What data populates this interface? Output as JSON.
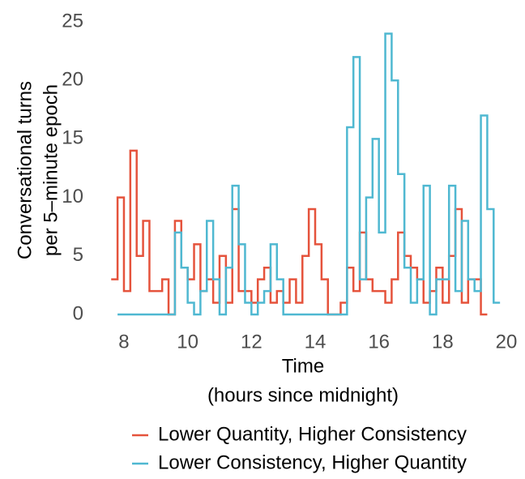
{
  "chart_data": {
    "type": "line",
    "step": true,
    "ylabel": [
      "Conversational turns",
      "per 5–minute epoch"
    ],
    "xlabel": [
      "Time",
      "(hours since midnight)"
    ],
    "x": [
      7.6,
      7.8,
      8.0,
      8.2,
      8.4,
      8.6,
      8.8,
      9.0,
      9.2,
      9.4,
      9.6,
      9.8,
      10.0,
      10.2,
      10.4,
      10.6,
      10.8,
      11.0,
      11.2,
      11.4,
      11.6,
      11.8,
      12.0,
      12.2,
      12.4,
      12.6,
      12.8,
      13.0,
      13.2,
      13.4,
      13.6,
      13.8,
      14.0,
      14.2,
      14.4,
      14.6,
      14.8,
      15.0,
      15.2,
      15.4,
      15.6,
      15.8,
      16.0,
      16.2,
      16.4,
      16.6,
      16.8,
      17.0,
      17.2,
      17.4,
      17.6,
      17.8,
      18.0,
      18.2,
      18.4,
      18.6,
      18.8,
      19.0,
      19.2,
      19.4,
      19.6
    ],
    "series": [
      {
        "name": "Lower Quantity, Higher Consistency",
        "color": "#e5533c",
        "values": [
          3,
          10,
          2,
          14,
          5,
          8,
          2,
          2,
          3,
          0,
          8,
          4,
          3,
          6,
          2,
          3,
          1,
          5,
          1,
          9,
          2,
          2,
          1,
          3,
          4,
          1,
          2,
          1,
          3,
          1,
          5,
          9,
          6,
          3,
          0,
          0,
          1,
          4,
          2,
          7,
          3,
          2,
          2,
          1,
          3,
          7,
          5,
          4,
          3,
          1,
          2,
          4,
          1,
          5,
          9,
          1,
          3,
          3,
          0,
          null,
          null
        ]
      },
      {
        "name": "Lower Consistency, Higher Quantity",
        "color": "#4fb8d1",
        "values": [
          null,
          0,
          0,
          0,
          0,
          0,
          0,
          0,
          0,
          0,
          7,
          4,
          1,
          0,
          2,
          8,
          3,
          0,
          4,
          11,
          6,
          1,
          0,
          1,
          2,
          6,
          3,
          0,
          0,
          0,
          0,
          0,
          0,
          0,
          0,
          0,
          0,
          16,
          22,
          3,
          10,
          15,
          7,
          24,
          20,
          12,
          4,
          1,
          3,
          11,
          0,
          3,
          3,
          11,
          2,
          8,
          3,
          2,
          17,
          9,
          1
        ]
      }
    ],
    "xlim": [
      7.5,
      20.5
    ],
    "ylim": [
      0,
      25
    ],
    "xticks": [
      8,
      10,
      12,
      14,
      16,
      18,
      20
    ],
    "yticks": [
      0,
      5,
      10,
      15,
      20,
      25
    ],
    "legend": "bottom"
  }
}
